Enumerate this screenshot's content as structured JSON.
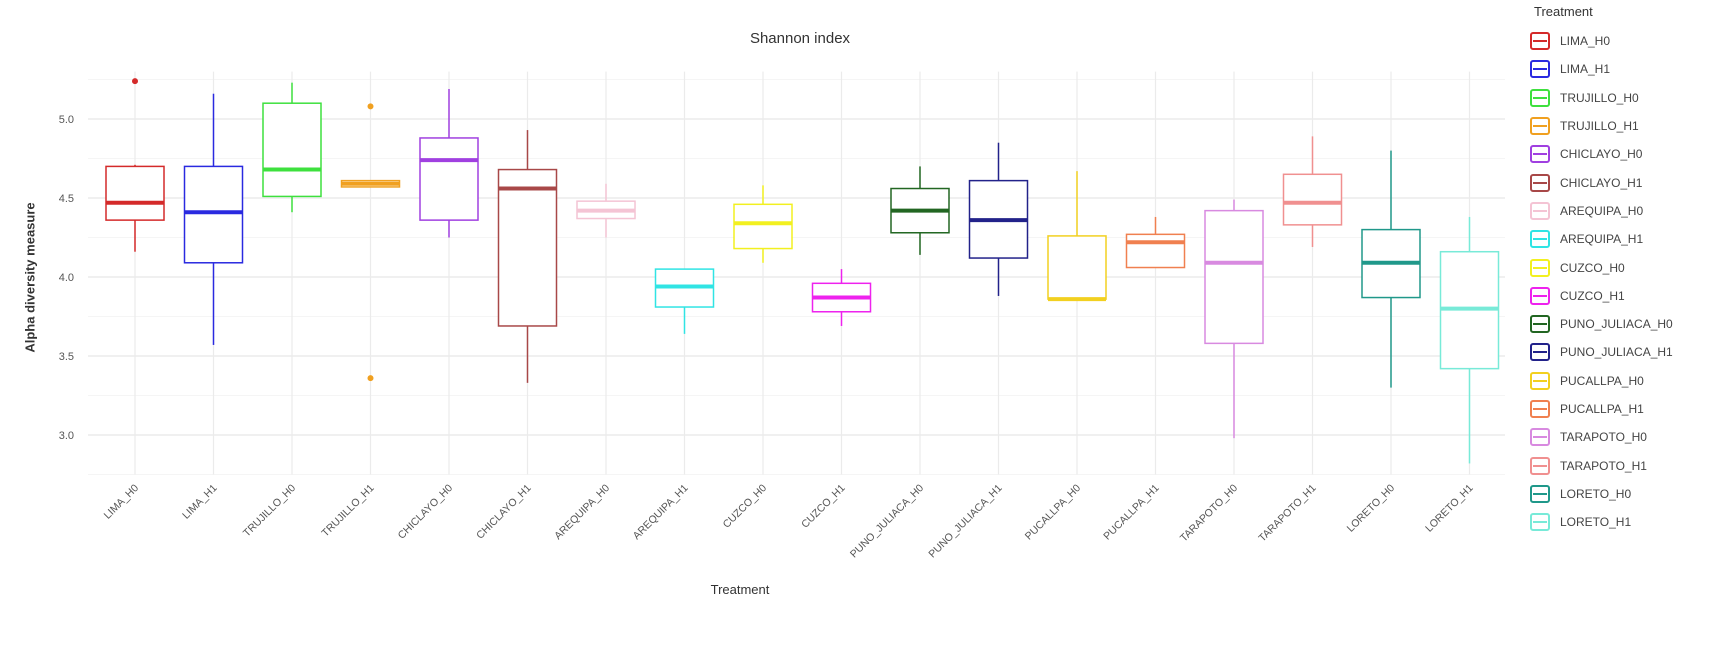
{
  "chart_data": {
    "type": "boxplot",
    "title": "Shannon index",
    "xlabel": "Treatment",
    "ylabel": "Alpha diversity measure",
    "ylim": [
      2.75,
      5.3
    ],
    "yticks": [
      "3.0",
      "3.5",
      "4.0",
      "4.5",
      "5.0"
    ],
    "grid": true,
    "legend": {
      "title": "Treatment",
      "position": "right"
    },
    "categories": [
      "LIMA_H0",
      "LIMA_H1",
      "TRUJILLO_H0",
      "TRUJILLO_H1",
      "CHICLAYO_H0",
      "CHICLAYO_H1",
      "AREQUIPA_H0",
      "AREQUIPA_H1",
      "CUZCO_H0",
      "CUZCO_H1",
      "PUNO_JULIACA_H0",
      "PUNO_JULIACA_H1",
      "PUCALLPA_H0",
      "PUCALLPA_H1",
      "TARAPOTO_H0",
      "TARAPOTO_H1",
      "LORETO_H0",
      "LORETO_H1"
    ],
    "colors": [
      "#d42a2a",
      "#2a2ae0",
      "#3ee03e",
      "#f0a020",
      "#a040e0",
      "#a84848",
      "#f4c4d4",
      "#30e4e4",
      "#f2f020",
      "#ee22ee",
      "#226622",
      "#22228a",
      "#f2d020",
      "#f08050",
      "#d88ae0",
      "#f09090",
      "#20988a",
      "#78ead8"
    ],
    "boxes": [
      {
        "min": 4.16,
        "q1": 4.36,
        "median": 4.47,
        "q3": 4.7,
        "max": 4.71,
        "outliers": [
          5.24
        ]
      },
      {
        "min": 3.57,
        "q1": 4.09,
        "median": 4.41,
        "q3": 4.7,
        "max": 5.16,
        "outliers": []
      },
      {
        "min": 4.41,
        "q1": 4.51,
        "median": 4.68,
        "q3": 5.1,
        "max": 5.23,
        "outliers": []
      },
      {
        "min": 4.57,
        "q1": 4.57,
        "median": 4.59,
        "q3": 4.61,
        "max": 4.61,
        "outliers": [
          5.08,
          3.36
        ]
      },
      {
        "min": 4.25,
        "q1": 4.36,
        "median": 4.74,
        "q3": 4.88,
        "max": 5.19,
        "outliers": []
      },
      {
        "min": 3.33,
        "q1": 3.69,
        "median": 4.56,
        "q3": 4.68,
        "max": 4.93,
        "outliers": []
      },
      {
        "min": 4.25,
        "q1": 4.37,
        "median": 4.42,
        "q3": 4.48,
        "max": 4.59,
        "outliers": []
      },
      {
        "min": 3.64,
        "q1": 3.81,
        "median": 3.94,
        "q3": 4.05,
        "max": 4.05,
        "outliers": []
      },
      {
        "min": 4.09,
        "q1": 4.18,
        "median": 4.34,
        "q3": 4.46,
        "max": 4.58,
        "outliers": []
      },
      {
        "min": 3.69,
        "q1": 3.78,
        "median": 3.87,
        "q3": 3.96,
        "max": 4.05,
        "outliers": []
      },
      {
        "min": 4.14,
        "q1": 4.28,
        "median": 4.42,
        "q3": 4.56,
        "max": 4.7,
        "outliers": []
      },
      {
        "min": 3.88,
        "q1": 4.12,
        "median": 4.36,
        "q3": 4.61,
        "max": 4.85,
        "outliers": []
      },
      {
        "min": 3.86,
        "q1": 3.86,
        "median": 3.86,
        "q3": 4.26,
        "max": 4.67,
        "outliers": []
      },
      {
        "min": 4.06,
        "q1": 4.06,
        "median": 4.22,
        "q3": 4.27,
        "max": 4.38,
        "outliers": []
      },
      {
        "min": 2.98,
        "q1": 3.58,
        "median": 4.09,
        "q3": 4.42,
        "max": 4.49,
        "outliers": []
      },
      {
        "min": 4.19,
        "q1": 4.33,
        "median": 4.47,
        "q3": 4.65,
        "max": 4.89,
        "outliers": []
      },
      {
        "min": 3.3,
        "q1": 3.87,
        "median": 4.09,
        "q3": 4.3,
        "max": 4.8,
        "outliers": []
      },
      {
        "min": 2.82,
        "q1": 3.42,
        "median": 3.8,
        "q3": 4.16,
        "max": 4.38,
        "outliers": []
      }
    ]
  }
}
